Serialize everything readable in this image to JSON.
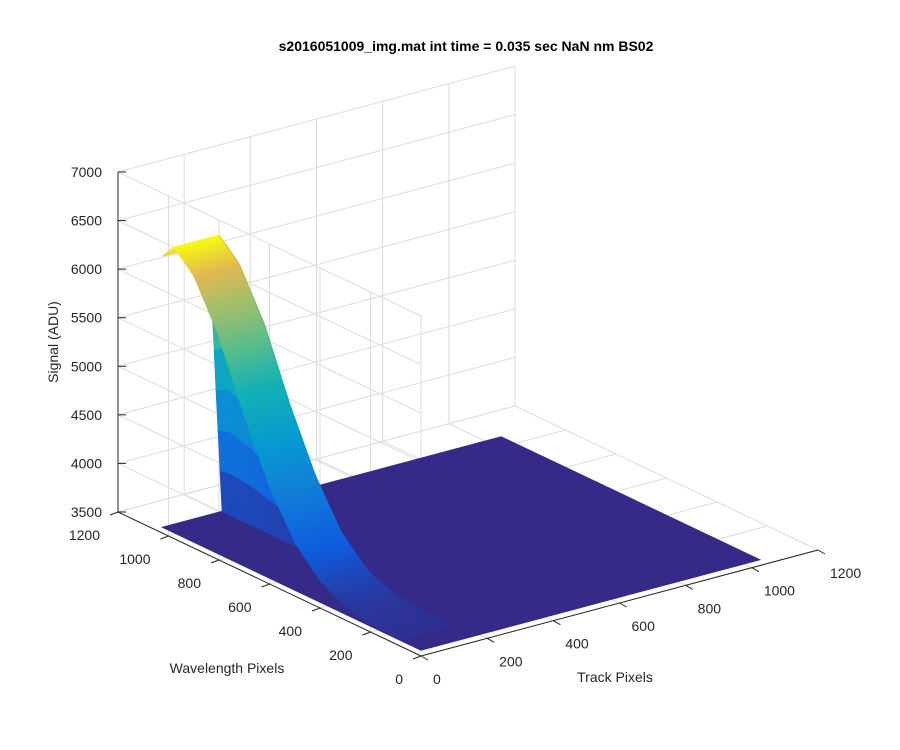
{
  "chart_data": {
    "type": "surface",
    "title": "s2016051009_img.mat int time = 0.035 sec  NaN nm BS02",
    "xlabel": "Track Pixels",
    "ylabel": "Wavelength Pixels",
    "zlabel": "Signal (ADU)",
    "xlim": [
      0,
      1200
    ],
    "ylim": [
      0,
      1200
    ],
    "zlim": [
      3500,
      7000
    ],
    "x_ticks": [
      0,
      200,
      400,
      600,
      800,
      1000,
      1200
    ],
    "y_ticks": [
      0,
      200,
      400,
      600,
      800,
      1000,
      1200
    ],
    "z_ticks": [
      3500,
      4000,
      4500,
      5000,
      5500,
      6000,
      6500,
      7000
    ],
    "x_tick_labels": [
      "0",
      "200",
      "400",
      "600",
      "800",
      "1000",
      "1200"
    ],
    "y_tick_labels": [
      "0",
      "200",
      "400",
      "600",
      "800",
      "1000",
      "1200"
    ],
    "z_tick_labels": [
      "3500",
      "4000",
      "4500",
      "5000",
      "5500",
      "6000",
      "6500",
      "7000"
    ],
    "data_extent": {
      "x": [
        0,
        1024
      ],
      "y": [
        0,
        1024
      ]
    },
    "background_level": 3560,
    "signal_band": {
      "track_range": [
        0,
        180
      ],
      "wavelength_range_of_peak": [
        880,
        1024
      ],
      "peak_value": 6500,
      "description_values": [
        {
          "wavelength": 1024,
          "signal": 6350
        },
        {
          "wavelength": 980,
          "signal": 6500
        },
        {
          "wavelength": 900,
          "signal": 6300
        },
        {
          "wavelength": 800,
          "signal": 5800
        },
        {
          "wavelength": 700,
          "signal": 5100
        },
        {
          "wavelength": 600,
          "signal": 4500
        },
        {
          "wavelength": 500,
          "signal": 4050
        },
        {
          "wavelength": 400,
          "signal": 3780
        },
        {
          "wavelength": 300,
          "signal": 3640
        },
        {
          "wavelength": 200,
          "signal": 3580
        },
        {
          "wavelength": 0,
          "signal": 3560
        }
      ]
    },
    "colormap": "parula",
    "grid": true
  }
}
